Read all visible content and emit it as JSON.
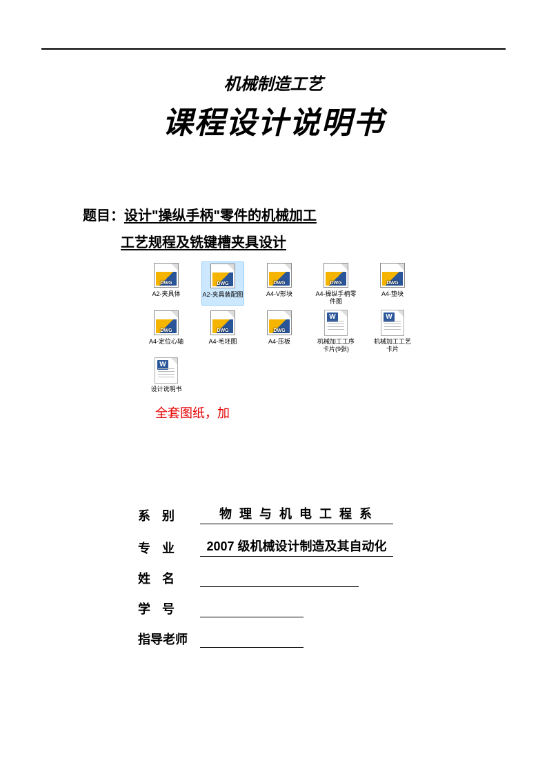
{
  "header": {
    "supertitle": "机械制造工艺",
    "title": "课程设计说明书"
  },
  "topic": {
    "label": "题目：",
    "line1": "设计\"操纵手柄\"零件的机械加工",
    "line2": "工艺规程及铣键槽夹具设计"
  },
  "files": {
    "dwg_badge": "DWG",
    "doc_badge": "W",
    "row1": [
      {
        "type": "dwg",
        "label": "A2-夹具体",
        "selected": false
      },
      {
        "type": "dwg",
        "label": "A2-夹具装配图",
        "selected": true
      },
      {
        "type": "dwg",
        "label": "A4-V形块",
        "selected": false
      },
      {
        "type": "dwg",
        "label": "A4-操纵手柄零件图",
        "selected": false
      },
      {
        "type": "dwg",
        "label": "A4-垫块",
        "selected": false
      }
    ],
    "row2": [
      {
        "type": "dwg",
        "label": "A4-定位心轴",
        "selected": false
      },
      {
        "type": "dwg",
        "label": "A4-毛坯图",
        "selected": false
      },
      {
        "type": "dwg",
        "label": "A4-压板",
        "selected": false
      },
      {
        "type": "doc",
        "label": "机械加工工序卡片(9张)",
        "selected": false
      },
      {
        "type": "doc",
        "label": "机械加工工艺卡片",
        "selected": false
      }
    ],
    "row3": [
      {
        "type": "doc",
        "label": "设计说明书",
        "selected": false
      }
    ]
  },
  "note": "全套图纸，加",
  "fields": {
    "dept_label": "系    别",
    "dept_value": "物 理 与 机 电 工 程 系",
    "major_label": "专    业",
    "major_value": "2007 级机械设计制造及其自动化",
    "name_label": "姓    名",
    "name_value": "",
    "id_label": "学    号",
    "id_value": "",
    "advisor_label": "指导老师",
    "advisor_value": ""
  },
  "colors": {
    "text": "#000000",
    "red": "#e60000",
    "dwg_yellow": "#f4b400",
    "dwg_blue": "#2a5599",
    "doc_blue": "#2b579a",
    "selection_bg": "#cce8ff",
    "selection_border": "#99d1ff"
  }
}
